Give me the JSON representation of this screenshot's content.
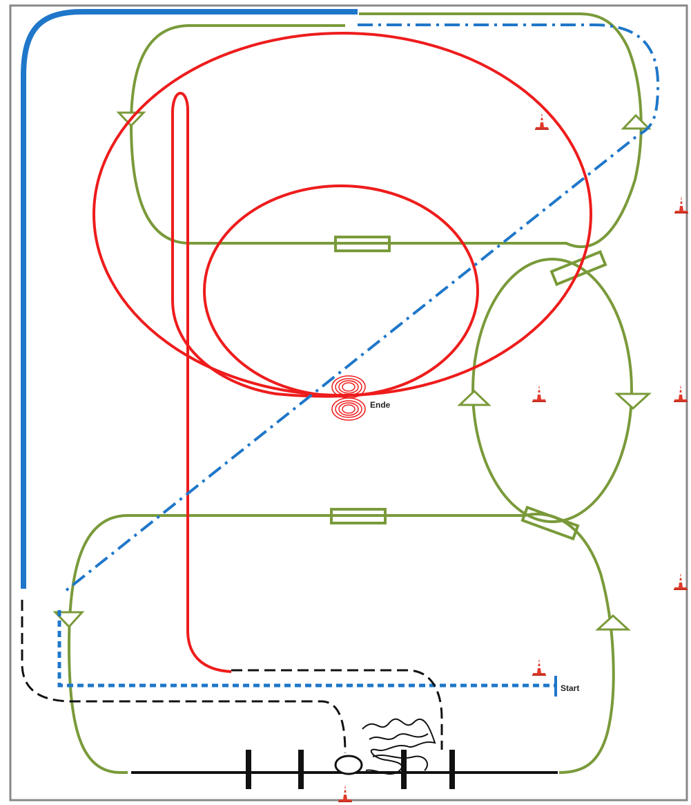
{
  "labels": {
    "start": "Start",
    "end": "Ende"
  },
  "colors": {
    "green_track": "#7a9a3a",
    "red_path": "#ee1c1c",
    "blue_solid": "#1f77c9",
    "blue_dashed": "#1f77c9",
    "black": "#111111",
    "cone": "#e03a2a",
    "frame": "#888888"
  },
  "icons": {
    "cone": "traffic-cone-icon",
    "direction_arrow": "triangle-arrow-icon",
    "bridge": "rectangle-bridge-icon"
  }
}
